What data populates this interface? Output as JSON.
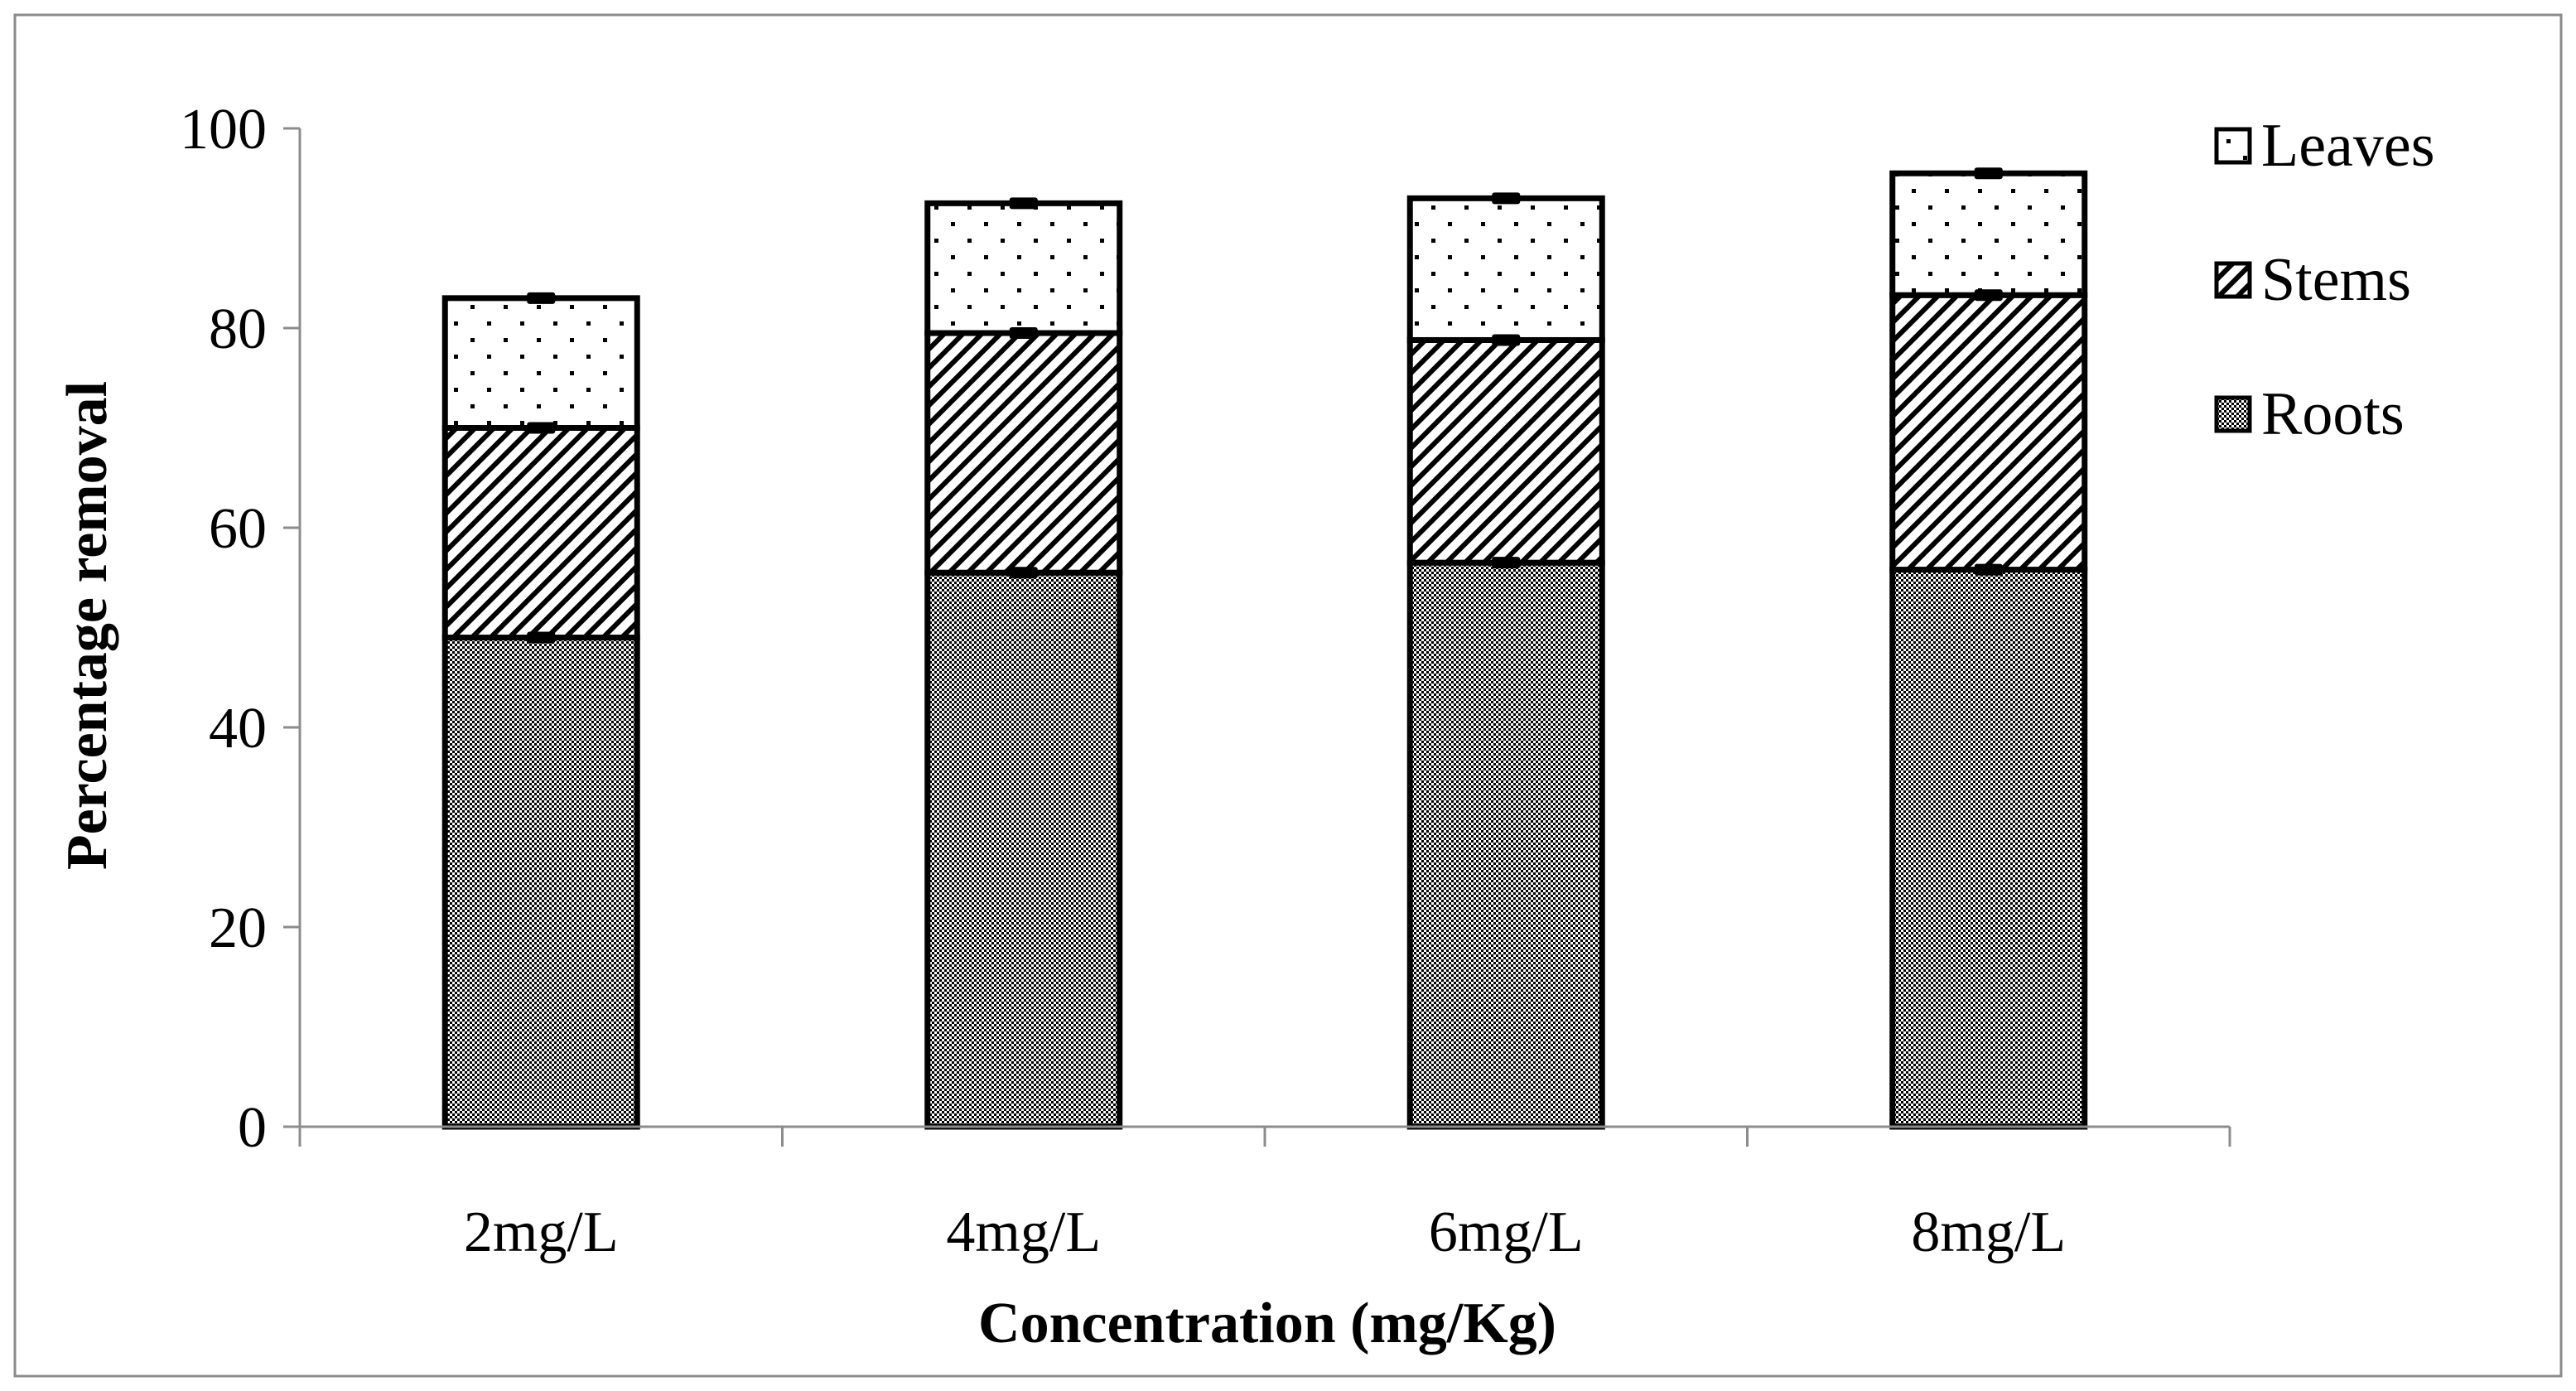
{
  "chart_data": {
    "type": "bar",
    "stacked": true,
    "title": "",
    "xlabel": "Concentration (mg/Kg)",
    "ylabel": "Percentage removal",
    "ylim": [
      0,
      100
    ],
    "yticks": [
      0,
      20,
      40,
      60,
      80,
      100
    ],
    "categories": [
      "2mg/L",
      "4mg/L",
      "6mg/L",
      "8mg/L"
    ],
    "series": [
      {
        "name": "Roots",
        "pattern": "checker",
        "values": [
          49.0,
          55.5,
          56.5,
          55.8
        ]
      },
      {
        "name": "Stems",
        "pattern": "diagonal",
        "values": [
          21.0,
          24.0,
          22.3,
          27.5
        ]
      },
      {
        "name": "Leaves",
        "pattern": "dots",
        "values": [
          13.0,
          13.0,
          14.2,
          12.2
        ]
      }
    ],
    "error_bars": true,
    "legend_position": "top-right",
    "legend_order": [
      "Leaves",
      "Stems",
      "Roots"
    ],
    "colors": {
      "stroke": "#000000",
      "axis": "#8c8c8c",
      "frame": "#8c8c8c",
      "background": "#ffffff"
    }
  }
}
